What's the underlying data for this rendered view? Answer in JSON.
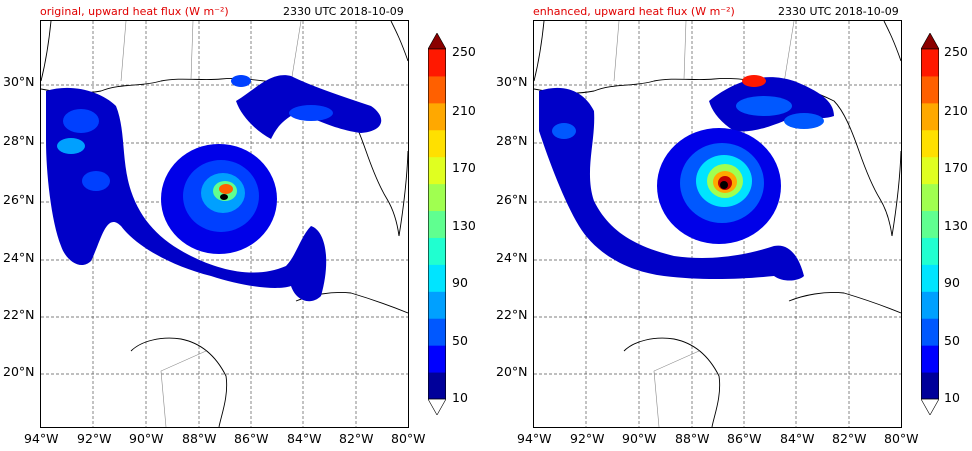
{
  "panels": [
    {
      "title": "original, upward heat flux (W m⁻²)",
      "time": "2330 UTC 2018-10-09"
    },
    {
      "title": "enhanced, upward heat flux (W m⁻²)",
      "time": "2330 UTC 2018-10-09"
    }
  ],
  "lat_ticks": [
    "30°N",
    "28°N",
    "26°N",
    "24°N",
    "22°N",
    "20°N"
  ],
  "lon_ticks": [
    "94°W",
    "92°W",
    "90°W",
    "88°W",
    "86°W",
    "84°W",
    "82°W",
    "80°W"
  ],
  "colorbar": {
    "labels": [
      "250",
      "210",
      "170",
      "130",
      "90",
      "50",
      "10"
    ],
    "colors": [
      "#00009a",
      "#0000ff",
      "#0058ff",
      "#00a0ff",
      "#00e4ff",
      "#20ffd0",
      "#60ff90",
      "#a0ff50",
      "#e0ff20",
      "#ffe000",
      "#ffa800",
      "#ff6000",
      "#ff1800",
      "#c00000",
      "#8a0000"
    ]
  }
}
